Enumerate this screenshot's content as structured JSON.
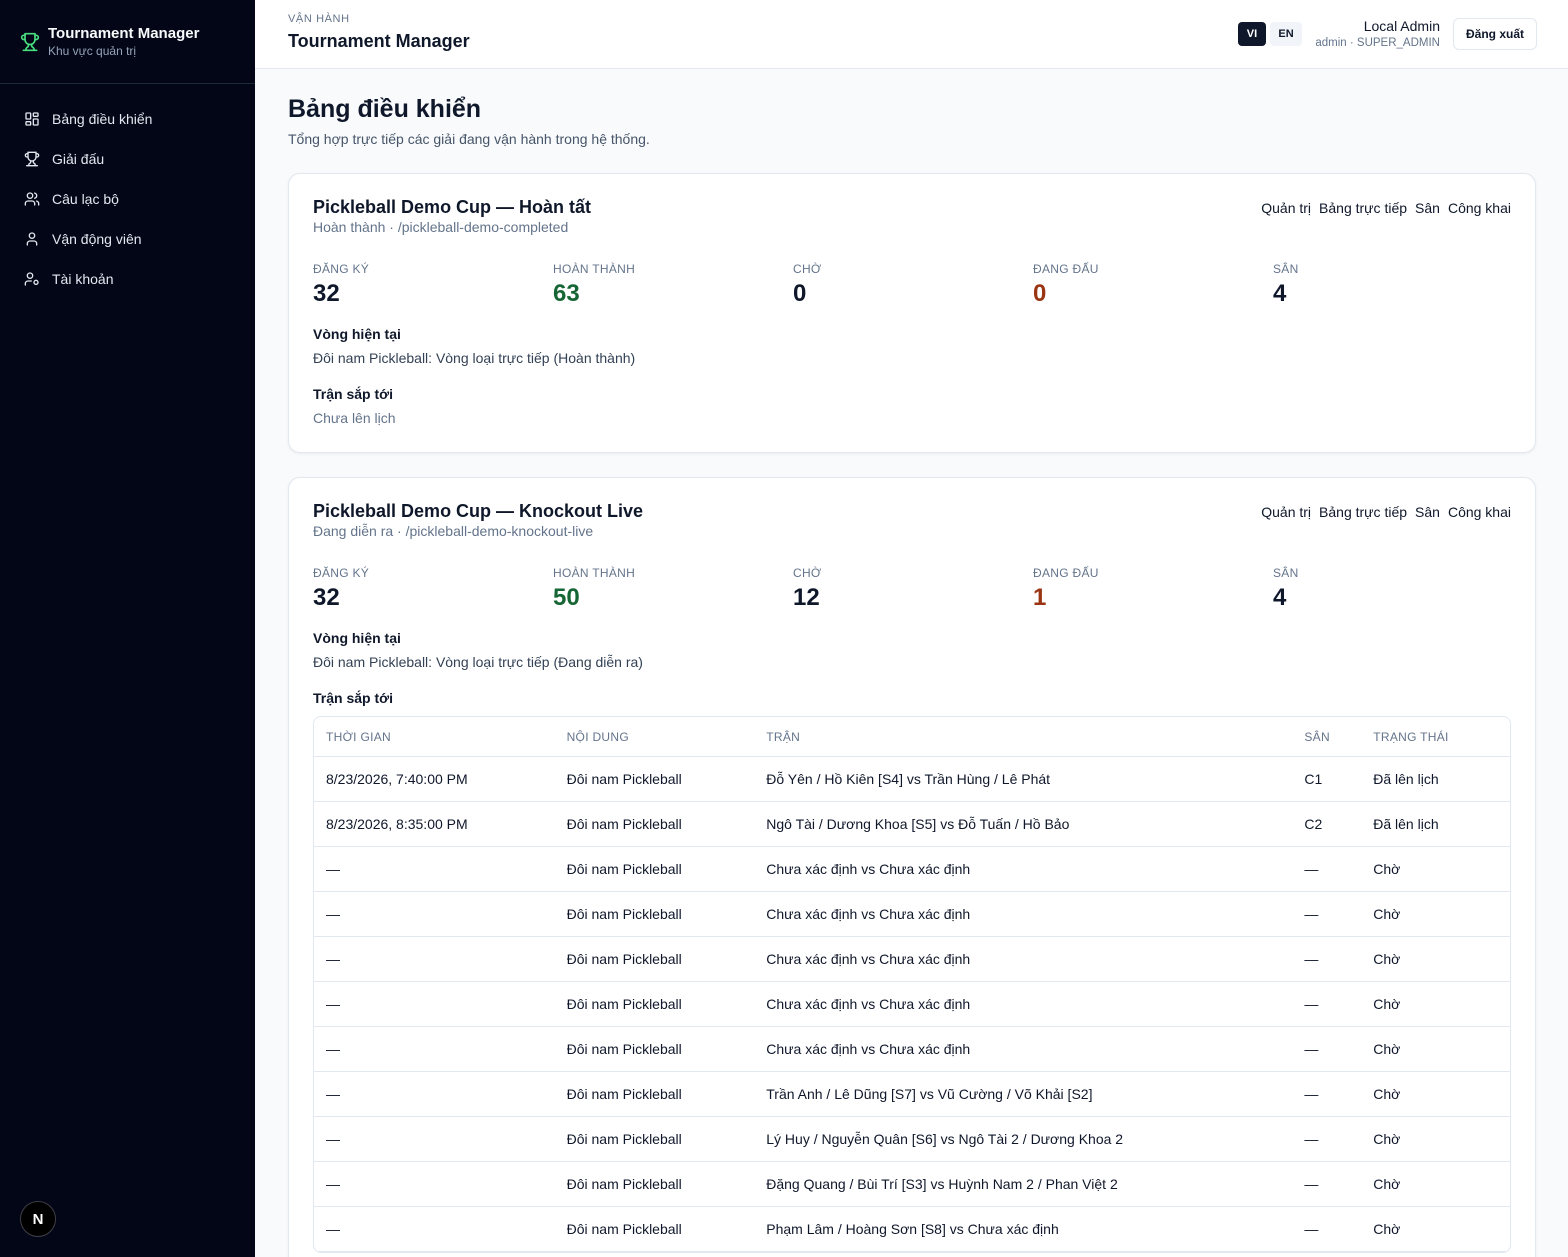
{
  "sidebar": {
    "brand_title": "Tournament Manager",
    "brand_sub": "Khu vực quản trị",
    "items": [
      {
        "label": "Bảng điều khiển",
        "icon": "dashboard-grid-icon"
      },
      {
        "label": "Giải đấu",
        "icon": "trophy-icon"
      },
      {
        "label": "Câu lạc bộ",
        "icon": "users-icon"
      },
      {
        "label": "Vận động viên",
        "icon": "user-icon"
      },
      {
        "label": "Tài khoản",
        "icon": "user-cog-icon"
      }
    ],
    "avatar_letter": "N"
  },
  "topbar": {
    "eyebrow": "VẬN HÀNH",
    "title": "Tournament Manager",
    "lang_vi": "VI",
    "lang_en": "EN",
    "user_name": "Local Admin",
    "user_role": "admin · SUPER_ADMIN",
    "logout": "Đăng xuất"
  },
  "page": {
    "title": "Bảng điều khiển",
    "description": "Tổng hợp trực tiếp các giải đang vận hành trong hệ thống."
  },
  "labels": {
    "registered": "ĐĂNG KÝ",
    "completed": "HOÀN THÀNH",
    "waiting": "CHỜ",
    "playing": "ĐANG ĐẤU",
    "courts": "SÂN",
    "current_round": "Vòng hiện tại",
    "upcoming": "Trận sắp tới",
    "link_admin": "Quản trị",
    "link_live": "Bảng trực tiếp",
    "link_court": "Sân",
    "link_public": "Công khai"
  },
  "tournaments": [
    {
      "name": "Pickleball Demo Cup — Hoàn tất",
      "meta": "Hoàn thành · /pickleball-demo-completed",
      "stats": {
        "registered": "32",
        "completed": "63",
        "waiting": "0",
        "playing": "0",
        "courts": "4"
      },
      "current_round": "Đôi nam Pickleball: Vòng loại trực tiếp (Hoàn thành)",
      "upcoming_empty": "Chưa lên lịch"
    },
    {
      "name": "Pickleball Demo Cup — Knockout Live",
      "meta": "Đang diễn ra · /pickleball-demo-knockout-live",
      "stats": {
        "registered": "32",
        "completed": "50",
        "waiting": "12",
        "playing": "1",
        "courts": "4"
      },
      "current_round": "Đôi nam Pickleball: Vòng loại trực tiếp (Đang diễn ra)"
    }
  ],
  "table": {
    "headers": [
      "THỜI GIAN",
      "NỘI DUNG",
      "TRẬN",
      "SÂN",
      "TRẠNG THÁI"
    ],
    "rows": [
      [
        "8/23/2026, 7:40:00 PM",
        "Đôi nam Pickleball",
        "Đỗ Yên / Hồ Kiên [S4] vs Trần Hùng / Lê Phát",
        "C1",
        "Đã lên lịch"
      ],
      [
        "8/23/2026, 8:35:00 PM",
        "Đôi nam Pickleball",
        "Ngô Tài / Dương Khoa [S5] vs Đỗ Tuấn / Hồ Bảo",
        "C2",
        "Đã lên lịch"
      ],
      [
        "—",
        "Đôi nam Pickleball",
        "Chưa xác định vs Chưa xác định",
        "—",
        "Chờ"
      ],
      [
        "—",
        "Đôi nam Pickleball",
        "Chưa xác định vs Chưa xác định",
        "—",
        "Chờ"
      ],
      [
        "—",
        "Đôi nam Pickleball",
        "Chưa xác định vs Chưa xác định",
        "—",
        "Chờ"
      ],
      [
        "—",
        "Đôi nam Pickleball",
        "Chưa xác định vs Chưa xác định",
        "—",
        "Chờ"
      ],
      [
        "—",
        "Đôi nam Pickleball",
        "Chưa xác định vs Chưa xác định",
        "—",
        "Chờ"
      ],
      [
        "—",
        "Đôi nam Pickleball",
        "Trần Anh / Lê Dũng [S7] vs Vũ Cường / Võ Khải [S2]",
        "—",
        "Chờ"
      ],
      [
        "—",
        "Đôi nam Pickleball",
        "Lý Huy / Nguyễn Quân [S6] vs Ngô Tài 2 / Dương Khoa 2",
        "—",
        "Chờ"
      ],
      [
        "—",
        "Đôi nam Pickleball",
        "Đặng Quang / Bùi Trí [S3] vs Huỳnh Nam 2 / Phan Việt 2",
        "—",
        "Chờ"
      ],
      [
        "—",
        "Đôi nam Pickleball",
        "Phạm Lâm / Hoàng Sơn [S8] vs Chưa xác định",
        "—",
        "Chờ"
      ]
    ]
  },
  "colors": {
    "sidebar_bg": "#020617",
    "brand_icon": "#4ade80",
    "completed_value": "#166534",
    "playing_value": "#9a3412"
  }
}
